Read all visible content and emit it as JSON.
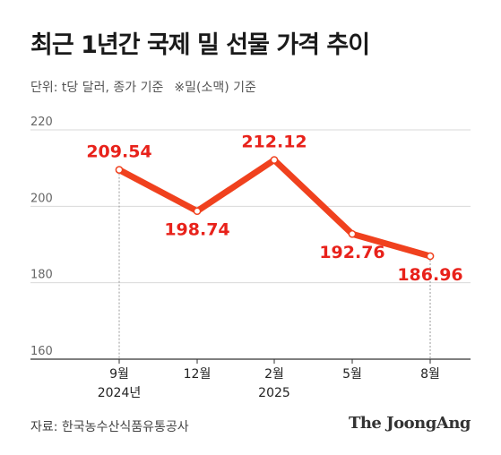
{
  "title": "최근 1년간 국제 밀 선물 가격 추이",
  "subtitle": "단위: t당 달러, 종가 기준",
  "note": "※밀(소맥) 기준",
  "source": "자료: 한국농수산식품유통공사",
  "brand": "The JoongAng",
  "colors": {
    "line": "#f0411e",
    "label": "#e8221b",
    "grid": "#d9d9d9",
    "axis": "#333333"
  },
  "chart_data": {
    "type": "line",
    "title": "최근 1년간 국제 밀 선물 가격 추이",
    "ylabel": "",
    "xlabel": "",
    "ylim": [
      160,
      220
    ],
    "yticks": [
      160,
      180,
      200,
      220
    ],
    "grid": true,
    "categories": [
      "9월",
      "12월",
      "2월",
      "5월",
      "8월"
    ],
    "category_years": [
      "2024년",
      "",
      "2025",
      "",
      ""
    ],
    "values": [
      209.54,
      198.74,
      212.12,
      192.76,
      186.96
    ],
    "value_labels": [
      "209.54",
      "198.74",
      "212.12",
      "192.76",
      "186.96"
    ],
    "label_positions": [
      "above",
      "below",
      "above",
      "below",
      "below"
    ],
    "dashed_guides": [
      0,
      4
    ]
  }
}
